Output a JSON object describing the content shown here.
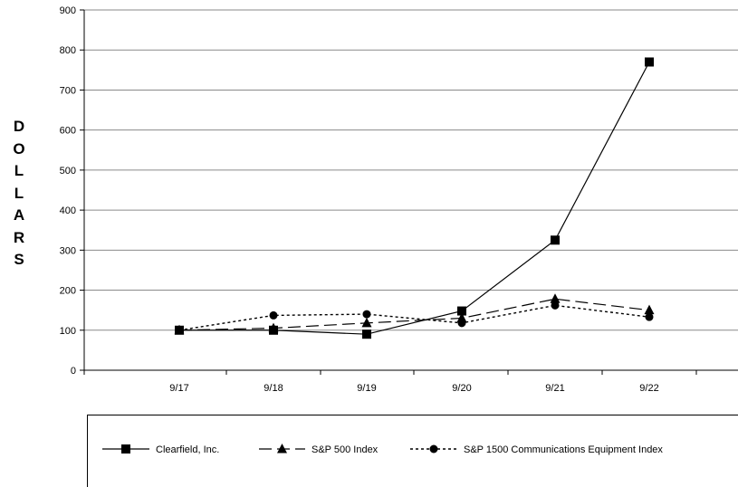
{
  "chart_data": {
    "type": "line",
    "title": "",
    "xlabel": "",
    "ylabel": "DOLLARS",
    "categories": [
      "9/17",
      "9/18",
      "9/19",
      "9/20",
      "9/21",
      "9/22"
    ],
    "y_ticks": [
      0,
      100,
      200,
      300,
      400,
      500,
      600,
      700,
      800,
      900
    ],
    "ylim": [
      0,
      900
    ],
    "grid": true,
    "legend_position": "bottom",
    "series": [
      {
        "name": "Clearfield, Inc.",
        "values": [
          100,
          100,
          90,
          148,
          325,
          770
        ],
        "marker": "square",
        "dash": "solid",
        "color": "#000000"
      },
      {
        "name": "S&P 500 Index",
        "values": [
          100,
          105,
          118,
          130,
          178,
          150
        ],
        "marker": "triangle",
        "dash": "long-dash",
        "color": "#000000"
      },
      {
        "name": "S&P 1500 Communications Equipment Index",
        "values": [
          100,
          137,
          140,
          118,
          162,
          133
        ],
        "marker": "circle",
        "dash": "short-dash",
        "color": "#000000"
      }
    ]
  }
}
